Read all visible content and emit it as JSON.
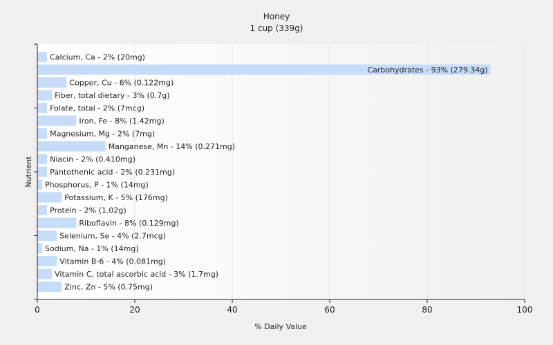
{
  "chart_data": {
    "type": "bar",
    "orientation": "horizontal",
    "title": "Honey",
    "subtitle": "1 cup (339g)",
    "xlabel": "% Daily Value",
    "ylabel": "Nutrient",
    "xlim": [
      0,
      100
    ],
    "x_ticks": [
      0,
      20,
      40,
      60,
      80,
      100
    ],
    "grid": true,
    "bar_color": "#c6dcf8",
    "categories": [
      "Calcium, Ca",
      "Carbohydrates",
      "Copper, Cu",
      "Fiber, total dietary",
      "Folate, total",
      "Iron, Fe",
      "Magnesium, Mg",
      "Manganese, Mn",
      "Niacin",
      "Pantothenic acid",
      "Phosphorus, P",
      "Potassium, K",
      "Protein",
      "Riboflavin",
      "Selenium, Se",
      "Sodium, Na",
      "Vitamin B-6",
      "Vitamin C, total ascorbic acid",
      "Zinc, Zn"
    ],
    "values": [
      2,
      93,
      6,
      3,
      2,
      8,
      2,
      14,
      2,
      2,
      1,
      5,
      2,
      8,
      4,
      1,
      4,
      3,
      5
    ],
    "labels": [
      "Calcium, Ca - 2% (20mg)",
      "Carbohydrates - 93% (279.34g)",
      "Copper, Cu - 6% (0.122mg)",
      "Fiber, total dietary - 3% (0.7g)",
      "Folate, total - 2% (7mcg)",
      "Iron, Fe - 8% (1.42mg)",
      "Magnesium, Mg - 2% (7mg)",
      "Manganese, Mn - 14% (0.271mg)",
      "Niacin - 2% (0.410mg)",
      "Pantothenic acid - 2% (0.231mg)",
      "Phosphorus, P - 1% (14mg)",
      "Potassium, K - 5% (176mg)",
      "Protein - 2% (1.02g)",
      "Riboflavin - 8% (0.129mg)",
      "Selenium, Se - 4% (2.7mcg)",
      "Sodium, Na - 1% (14mg)",
      "Vitamin B-6 - 4% (0.081mg)",
      "Vitamin C, total ascorbic acid - 3% (1.7mg)",
      "Zinc, Zn - 5% (0.75mg)"
    ]
  }
}
